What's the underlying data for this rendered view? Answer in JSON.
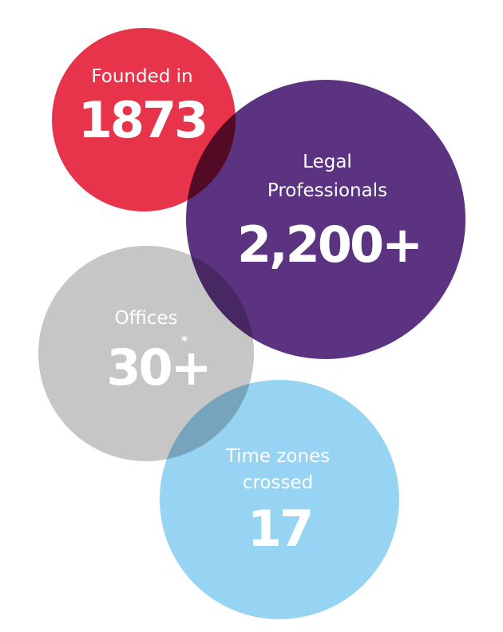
{
  "stats": [
    {
      "label_lines": [
        "Founded in"
      ],
      "value": "1873"
    },
    {
      "label_lines": [
        "Legal",
        "Professionals"
      ],
      "value": "2,200+"
    },
    {
      "label_lines": [
        "Offices"
      ],
      "value": "30+",
      "footnote_mark": "*"
    },
    {
      "label_lines": [
        "Time zones",
        "crossed"
      ],
      "value": "17"
    }
  ]
}
